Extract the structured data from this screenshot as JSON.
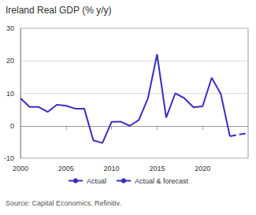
{
  "chart_data": {
    "type": "line",
    "title": "Ireland Real GDP (% y/y)",
    "source": "Source: Capital Economics, Refinitiv.",
    "xlim": [
      2000,
      2025
    ],
    "xticks": [
      2000,
      2005,
      2010,
      2015,
      2020
    ],
    "ylim": [
      -10,
      30
    ],
    "yticks": [
      -10,
      0,
      10,
      20,
      30
    ],
    "grid": true,
    "legend": "bottom",
    "series": [
      {
        "name": "Actual",
        "color": "#3b2dbf",
        "line_style": "solid",
        "x": [
          2000,
          2001,
          2002,
          2003,
          2004,
          2005,
          2006,
          2007,
          2008,
          2009,
          2010,
          2011,
          2012,
          2013,
          2014,
          2015,
          2016,
          2017,
          2018,
          2019,
          2020,
          2021,
          2022,
          2023
        ],
        "values": [
          8.5,
          5.8,
          5.8,
          4.3,
          6.5,
          6.2,
          5.3,
          5.3,
          -4.5,
          -5.3,
          1.2,
          1.3,
          0.0,
          1.8,
          8.5,
          22.0,
          2.5,
          10.0,
          8.5,
          5.7,
          6.0,
          14.8,
          9.8,
          -3.2
        ]
      },
      {
        "name": "Actual & forecast",
        "color": "#3b2dbf",
        "line_style": "dashed",
        "x": [
          2023,
          2024,
          2025
        ],
        "values": [
          -3.2,
          -2.7,
          -2.2
        ]
      }
    ]
  }
}
